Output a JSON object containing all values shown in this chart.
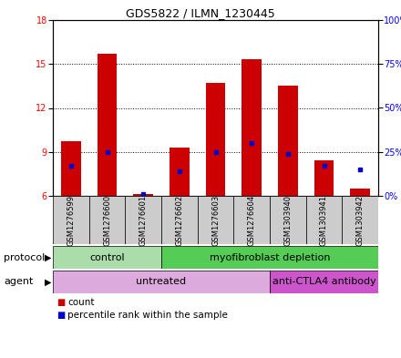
{
  "title": "GDS5822 / ILMN_1230445",
  "samples": [
    "GSM1276599",
    "GSM1276600",
    "GSM1276601",
    "GSM1276602",
    "GSM1276603",
    "GSM1276604",
    "GSM1303940",
    "GSM1303941",
    "GSM1303942"
  ],
  "counts": [
    9.7,
    15.7,
    6.1,
    9.3,
    13.7,
    15.3,
    13.5,
    8.4,
    6.5
  ],
  "percentiles": [
    17,
    25,
    1,
    14,
    25,
    30,
    24,
    17,
    15
  ],
  "ylim_left": [
    6,
    18
  ],
  "ylim_right": [
    0,
    100
  ],
  "yticks_left": [
    6,
    9,
    12,
    15,
    18
  ],
  "yticks_right": [
    0,
    25,
    50,
    75,
    100
  ],
  "ytick_labels_right": [
    "0%",
    "25%",
    "50%",
    "75%",
    "100%"
  ],
  "bar_color": "#CC0000",
  "dot_color": "#0000CC",
  "bar_bottom": 6.0,
  "bar_width": 0.55,
  "protocol_groups": [
    {
      "label": "control",
      "start": 0,
      "end": 3,
      "color": "#aaddaa"
    },
    {
      "label": "myofibroblast depletion",
      "start": 3,
      "end": 9,
      "color": "#55cc55"
    }
  ],
  "agent_groups": [
    {
      "label": "untreated",
      "start": 0,
      "end": 6,
      "color": "#ddaadd"
    },
    {
      "label": "anti-CTLA4 antibody",
      "start": 6,
      "end": 9,
      "color": "#cc55cc"
    }
  ],
  "protocol_label": "protocol",
  "agent_label": "agent",
  "legend_count_label": "count",
  "legend_pct_label": "percentile rank within the sample",
  "grid_color": "#000000",
  "plot_bg_color": "#ffffff",
  "sample_box_color": "#cccccc",
  "title_fontsize": 9,
  "tick_fontsize": 7,
  "label_fontsize": 8,
  "row_label_fontsize": 8,
  "sample_fontsize": 6
}
